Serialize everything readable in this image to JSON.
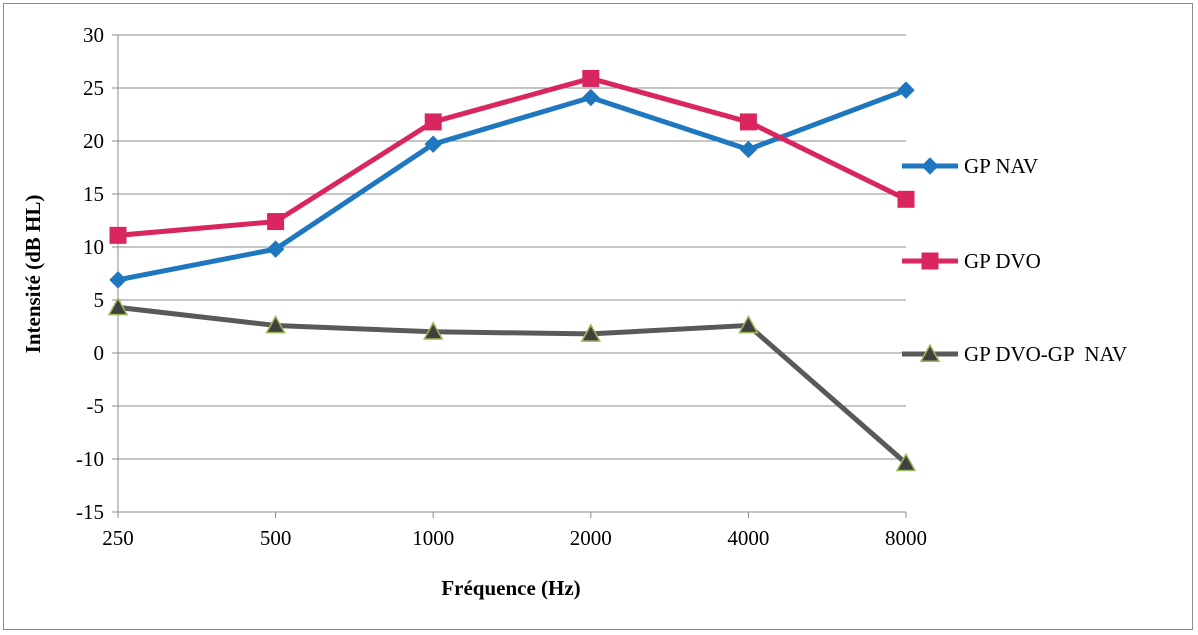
{
  "chart_data": {
    "type": "line",
    "title": "",
    "xlabel": "Fréquence (Hz)",
    "ylabel": "Intensité (dB HL)",
    "categories": [
      "250",
      "500",
      "1000",
      "2000",
      "4000",
      "8000"
    ],
    "ylim": [
      -15,
      30
    ],
    "yticks": [
      "30",
      "25",
      "20",
      "15",
      "10",
      "5",
      "0",
      "-5",
      "-10",
      "-15"
    ],
    "grid": "horizontal",
    "legend_position": "right",
    "series": [
      {
        "name": "GP NAV",
        "values": [
          6.9,
          9.8,
          19.7,
          24.1,
          19.2,
          24.8
        ],
        "color": "#1f77c0",
        "marker": "diamond",
        "marker_fill": "#1f77c0"
      },
      {
        "name": "GP DVO",
        "values": [
          11.1,
          12.4,
          21.8,
          25.9,
          21.8,
          14.5
        ],
        "color": "#d9265e",
        "marker": "square",
        "marker_fill": "#d9265e"
      },
      {
        "name": "GP DVO-GP  NAV",
        "values": [
          4.3,
          2.6,
          2.0,
          1.8,
          2.6,
          -10.4
        ],
        "color": "#595959",
        "marker": "triangle",
        "marker_fill": "#404040",
        "marker_stroke": "#9bbb59"
      }
    ]
  }
}
